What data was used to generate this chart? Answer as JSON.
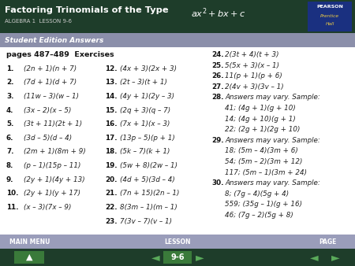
{
  "title_plain": "Factoring Trinomials of the Type ",
  "title_math": "ax² + bx + c",
  "subtitle": "ALGEBRA 1  LESSON 9-6",
  "section_label": "Student Edition Answers",
  "header_bg": "#1e3d2a",
  "body_bg": "#ffffff",
  "section_bg": "#8b8faa",
  "nav_label_bg": "#9a9dba",
  "nav_btn_bg": "#1e3d2a",
  "pearson_box_bg": "#1a3080",
  "col1": [
    [
      "pages 487–489  Exercises",
      ""
    ],
    [
      "1.",
      "(2n + 1)(n + 7)"
    ],
    [
      "2.",
      "(7d + 1)(d + 7)"
    ],
    [
      "3.",
      "(11w – 3)(w – 1)"
    ],
    [
      "4.",
      "(3x – 2)(x – 5)"
    ],
    [
      "5.",
      "(3t + 11)(2t + 1)"
    ],
    [
      "6.",
      "(3d – 5)(d – 4)"
    ],
    [
      "7.",
      "(2m + 1)(8m + 9)"
    ],
    [
      "8.",
      "(p – 1)(15p – 11)"
    ],
    [
      "9.",
      "(2y + 1)(4y + 13)"
    ],
    [
      "10.",
      "(2y + 1)(y + 17)"
    ],
    [
      "11.",
      "(x – 3)(7x – 9)"
    ]
  ],
  "col2": [
    [
      "12.",
      "(4x + 3)(2x + 3)"
    ],
    [
      "13.",
      "(2t – 3)(t + 1)"
    ],
    [
      "14.",
      "(4y + 1)(2y – 3)"
    ],
    [
      "15.",
      "(2q + 3)(q – 7)"
    ],
    [
      "16.",
      "(7x + 1)(x – 3)"
    ],
    [
      "17.",
      "(13p – 5)(p + 1)"
    ],
    [
      "18.",
      "(5k – 7)(k + 1)"
    ],
    [
      "19.",
      "(5w + 8)(2w – 1)"
    ],
    [
      "20.",
      "(4d + 5)(3d – 4)"
    ],
    [
      "21.",
      "(7n + 15)(2n – 1)"
    ],
    [
      "22.",
      "8(3m – 1)(m – 1)"
    ],
    [
      "23.",
      "7(3v – 7)(v – 1)"
    ]
  ],
  "col3": [
    [
      "24.",
      "2(3t + 4)(t + 3)"
    ],
    [
      "25.",
      "5(5x + 3)(x – 1)"
    ],
    [
      "26.",
      "11(p + 1)(p + 6)"
    ],
    [
      "27.",
      "2(4v + 3)(3v – 1)"
    ],
    [
      "28.",
      "Answers may vary. Sample:"
    ],
    [
      "",
      "41; (4g + 1)(g + 10)"
    ],
    [
      "",
      "14; (4g + 10)(g + 1)"
    ],
    [
      "",
      "22; (2g + 1)(2g + 10)"
    ],
    [
      "29.",
      "Answers may vary. Sample:"
    ],
    [
      "",
      "18; (5m – 4)(3m + 6)"
    ],
    [
      "",
      "54; (5m – 2)(3m + 12)"
    ],
    [
      "",
      "117; (5m – 1)(3m + 24)"
    ],
    [
      "30.",
      "Answers may vary. Sample:"
    ],
    [
      "",
      "8; (7g – 4)(5g + 4)"
    ],
    [
      "",
      "559; (35g – 1)(g + 16)"
    ],
    [
      "",
      "46; (7g – 2)(5g + 8)"
    ]
  ]
}
